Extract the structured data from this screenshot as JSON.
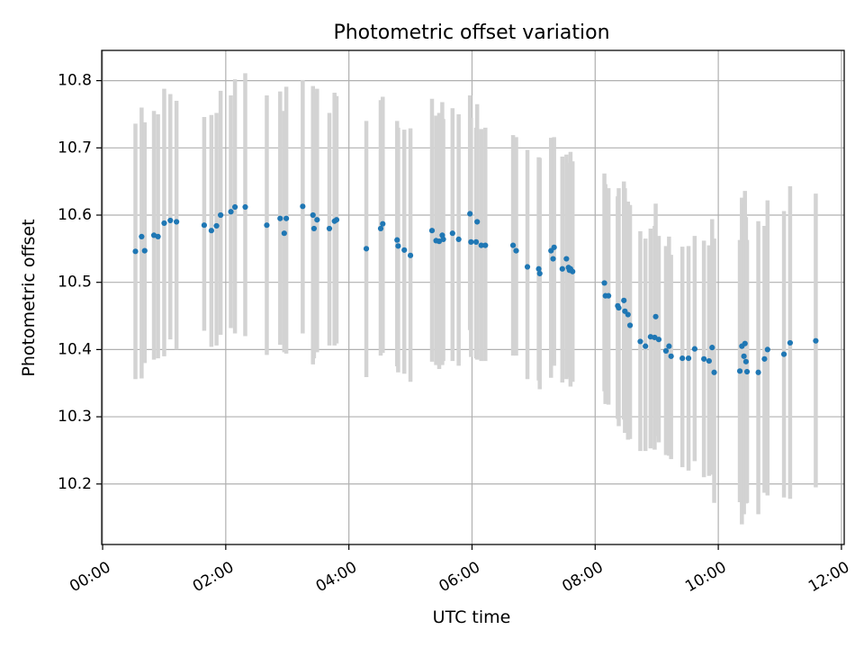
{
  "chart_data": {
    "type": "scatter",
    "title": "Photometric offset variation",
    "xlabel": "UTC time",
    "ylabel": "Photometric offset",
    "x_unit": "hours (UTC)",
    "xlim": [
      "00:00",
      "12:00"
    ],
    "ylim": [
      10.11,
      10.845
    ],
    "xticks": [
      "00:00",
      "02:00",
      "04:00",
      "06:00",
      "08:00",
      "10:00",
      "12:00"
    ],
    "yticks": [
      "10.2",
      "10.3",
      "10.4",
      "10.5",
      "10.6",
      "10.7",
      "10.8"
    ],
    "grid": true,
    "legend": "none",
    "colors": {
      "points": "#1f77b4",
      "error_bars": "#d3d3d3",
      "grid": "#b0b0b0"
    },
    "series": [
      {
        "x_time": [
          "00:32",
          "00:38",
          "00:41",
          "00:50",
          "00:54",
          "01:00",
          "01:06",
          "01:12",
          "01:39",
          "01:46",
          "01:51",
          "01:55",
          "02:05",
          "02:09",
          "02:19",
          "02:40",
          "02:53",
          "02:57",
          "02:59",
          "03:15",
          "03:25",
          "03:26",
          "03:29",
          "03:41",
          "03:46",
          "03:48",
          "04:17",
          "04:31",
          "04:33",
          "04:47",
          "04:48",
          "04:54",
          "05:00",
          "05:21",
          "05:25",
          "05:28",
          "05:31",
          "05:32",
          "05:41",
          "05:47",
          "05:58",
          "05:59",
          "06:04",
          "06:05",
          "06:09",
          "06:13",
          "06:40",
          "06:43",
          "06:54",
          "07:05",
          "07:06",
          "07:17",
          "07:19",
          "07:20",
          "07:28",
          "07:32",
          "07:34",
          "07:35",
          "07:36",
          "07:38",
          "08:09",
          "08:10",
          "08:13",
          "08:22",
          "08:23",
          "08:28",
          "08:29",
          "08:32",
          "08:34",
          "08:44",
          "08:49",
          "08:54",
          "08:58",
          "08:59",
          "09:02",
          "09:09",
          "09:12",
          "09:14",
          "09:25",
          "09:31",
          "09:37",
          "09:46",
          "09:51",
          "09:54",
          "09:56",
          "10:21",
          "10:23",
          "10:25",
          "10:26",
          "10:27",
          "10:28",
          "10:39",
          "10:45",
          "10:48",
          "11:04",
          "11:10",
          "11:35"
        ],
        "y": [
          10.546,
          10.568,
          10.547,
          10.57,
          10.568,
          10.588,
          10.592,
          10.59,
          10.585,
          10.577,
          10.584,
          10.6,
          10.605,
          10.612,
          10.612,
          10.585,
          10.595,
          10.573,
          10.595,
          10.613,
          10.6,
          10.58,
          10.593,
          10.58,
          10.591,
          10.593,
          10.55,
          10.58,
          10.587,
          10.563,
          10.554,
          10.548,
          10.54,
          10.577,
          10.562,
          10.561,
          10.57,
          10.564,
          10.573,
          10.564,
          10.602,
          10.56,
          10.56,
          10.59,
          10.555,
          10.555,
          10.555,
          10.547,
          10.523,
          10.52,
          10.513,
          10.547,
          10.535,
          10.552,
          10.52,
          10.535,
          10.522,
          10.518,
          10.52,
          10.516,
          10.499,
          10.48,
          10.48,
          10.465,
          10.462,
          10.473,
          10.457,
          10.452,
          10.436,
          10.412,
          10.405,
          10.419,
          10.418,
          10.449,
          10.415,
          10.398,
          10.405,
          10.39,
          10.387,
          10.387,
          10.401,
          10.386,
          10.383,
          10.403,
          10.366,
          10.368,
          10.405,
          10.39,
          10.409,
          10.382,
          10.367,
          10.366,
          10.386,
          10.4,
          10.393,
          10.41,
          10.413
        ],
        "y_err_low": [
          10.356,
          10.357,
          10.38,
          10.385,
          10.387,
          10.39,
          10.415,
          10.4,
          10.428,
          10.404,
          10.406,
          10.422,
          10.432,
          10.424,
          10.42,
          10.392,
          10.407,
          10.396,
          10.394,
          10.424,
          10.378,
          10.387,
          10.396,
          10.406,
          10.406,
          10.409,
          10.359,
          10.391,
          10.395,
          10.375,
          10.366,
          10.364,
          10.352,
          10.382,
          10.377,
          10.371,
          10.377,
          10.383,
          10.383,
          10.376,
          10.429,
          10.389,
          10.387,
          10.385,
          10.383,
          10.383,
          10.391,
          10.391,
          10.356,
          10.354,
          10.341,
          10.358,
          10.382,
          10.376,
          10.351,
          10.356,
          10.359,
          10.364,
          10.345,
          10.352,
          10.338,
          10.319,
          10.318,
          10.297,
          10.286,
          10.296,
          10.276,
          10.266,
          10.267,
          10.249,
          10.249,
          10.253,
          10.251,
          10.271,
          10.262,
          10.243,
          10.242,
          10.237,
          10.225,
          10.22,
          10.234,
          10.21,
          10.212,
          10.214,
          10.172,
          10.173,
          10.14,
          10.155,
          10.183,
          10.171,
          10.172,
          10.155,
          10.187,
          10.183,
          10.18,
          10.178,
          10.195
        ],
        "y_err_high": [
          10.736,
          10.76,
          10.738,
          10.755,
          10.75,
          10.788,
          10.78,
          10.77,
          10.746,
          10.749,
          10.752,
          10.785,
          10.778,
          10.802,
          10.811,
          10.778,
          10.784,
          10.755,
          10.791,
          10.801,
          10.792,
          10.783,
          10.788,
          10.752,
          10.782,
          10.777,
          10.74,
          10.771,
          10.776,
          10.74,
          10.73,
          10.727,
          10.729,
          10.773,
          10.748,
          10.752,
          10.768,
          10.743,
          10.759,
          10.75,
          10.778,
          10.745,
          10.73,
          10.765,
          10.728,
          10.73,
          10.719,
          10.716,
          10.697,
          10.686,
          10.685,
          10.715,
          10.688,
          10.716,
          10.687,
          10.69,
          10.678,
          10.676,
          10.694,
          10.68,
          10.662,
          10.646,
          10.64,
          10.628,
          10.64,
          10.65,
          10.64,
          10.62,
          10.615,
          10.576,
          10.565,
          10.58,
          10.584,
          10.617,
          10.569,
          10.554,
          10.568,
          10.541,
          10.553,
          10.554,
          10.569,
          10.562,
          10.555,
          10.594,
          10.565,
          10.563,
          10.626,
          10.616,
          10.636,
          10.597,
          10.563,
          10.591,
          10.584,
          10.622,
          10.606,
          10.643,
          10.632
        ]
      }
    ]
  }
}
